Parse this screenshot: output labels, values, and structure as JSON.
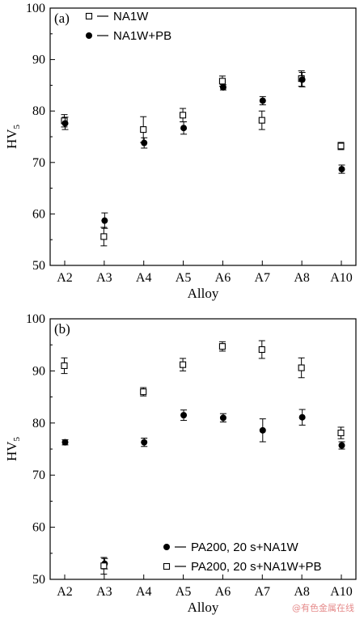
{
  "chart_data": [
    {
      "type": "scatter",
      "panel_label": "(a)",
      "xlabel": "Alloy",
      "ylabel_main": "HV",
      "ylabel_sub": "5",
      "categories": [
        "A2",
        "A3",
        "A4",
        "A5",
        "A6",
        "A7",
        "A8",
        "A10"
      ],
      "ylim": [
        50,
        100
      ],
      "yticks": [
        50,
        60,
        70,
        80,
        90,
        100
      ],
      "legend_position": "top-left",
      "series": [
        {
          "name": "NA1W",
          "marker": "open-square",
          "values": [
            78.1,
            55.6,
            76.4,
            79.2,
            85.8,
            78.2,
            86.3,
            73.2
          ],
          "errors": [
            1.2,
            1.8,
            2.5,
            1.3,
            1.0,
            1.8,
            1.5,
            0.7
          ]
        },
        {
          "name": "NA1W+PB",
          "marker": "filled-circle",
          "values": [
            77.6,
            58.7,
            73.8,
            76.7,
            84.6,
            82.0,
            86.1,
            68.7
          ],
          "errors": [
            1.2,
            1.5,
            1.0,
            1.2,
            0.5,
            0.8,
            1.4,
            0.8
          ]
        }
      ]
    },
    {
      "type": "scatter",
      "panel_label": "(b)",
      "xlabel": "Alloy",
      "ylabel_main": "HV",
      "ylabel_sub": "5",
      "categories": [
        "A2",
        "A3",
        "A4",
        "A5",
        "A6",
        "A7",
        "A8",
        "A10"
      ],
      "ylim": [
        50,
        100
      ],
      "yticks": [
        50,
        60,
        70,
        80,
        90,
        100
      ],
      "legend_position": "bottom-right",
      "series": [
        {
          "name": "PA200, 20 s+NA1W",
          "marker": "filled-circle",
          "values": [
            76.3,
            53.0,
            76.3,
            81.5,
            81.0,
            78.6,
            81.1,
            75.7
          ],
          "errors": [
            0.5,
            1.0,
            0.8,
            1.0,
            0.8,
            2.2,
            1.5,
            0.7
          ]
        },
        {
          "name": "PA200, 20 s+NA1W+PB",
          "marker": "open-square",
          "values": [
            91.0,
            52.6,
            86.0,
            91.2,
            94.7,
            94.1,
            90.6,
            78.1
          ],
          "errors": [
            1.5,
            1.6,
            0.8,
            1.2,
            0.9,
            1.7,
            1.9,
            1.1
          ]
        }
      ]
    }
  ],
  "watermark": "@有色金属在线"
}
